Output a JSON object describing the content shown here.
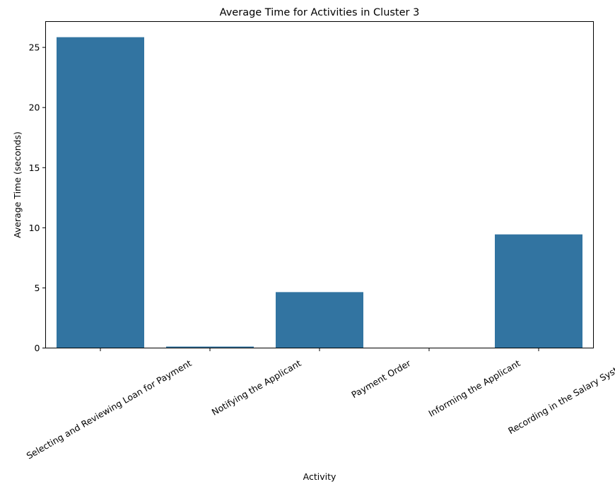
{
  "chart_data": {
    "type": "bar",
    "title": "Average Time for Activities in Cluster 3",
    "xlabel": "Activity",
    "ylabel": "Average Time (seconds)",
    "categories": [
      "Selecting and Reviewing Loan for Payment",
      "Notifying the Applicant",
      "Payment Order",
      "Informing the Applicant",
      "Recording in the Salary System"
    ],
    "values": [
      25.85,
      0.12,
      4.65,
      0.0,
      9.45
    ],
    "ylim": [
      0,
      27.15
    ],
    "yticks": [
      0,
      5,
      10,
      15,
      20,
      25
    ],
    "bar_color": "#3274a1",
    "grid": false,
    "legend": false
  }
}
